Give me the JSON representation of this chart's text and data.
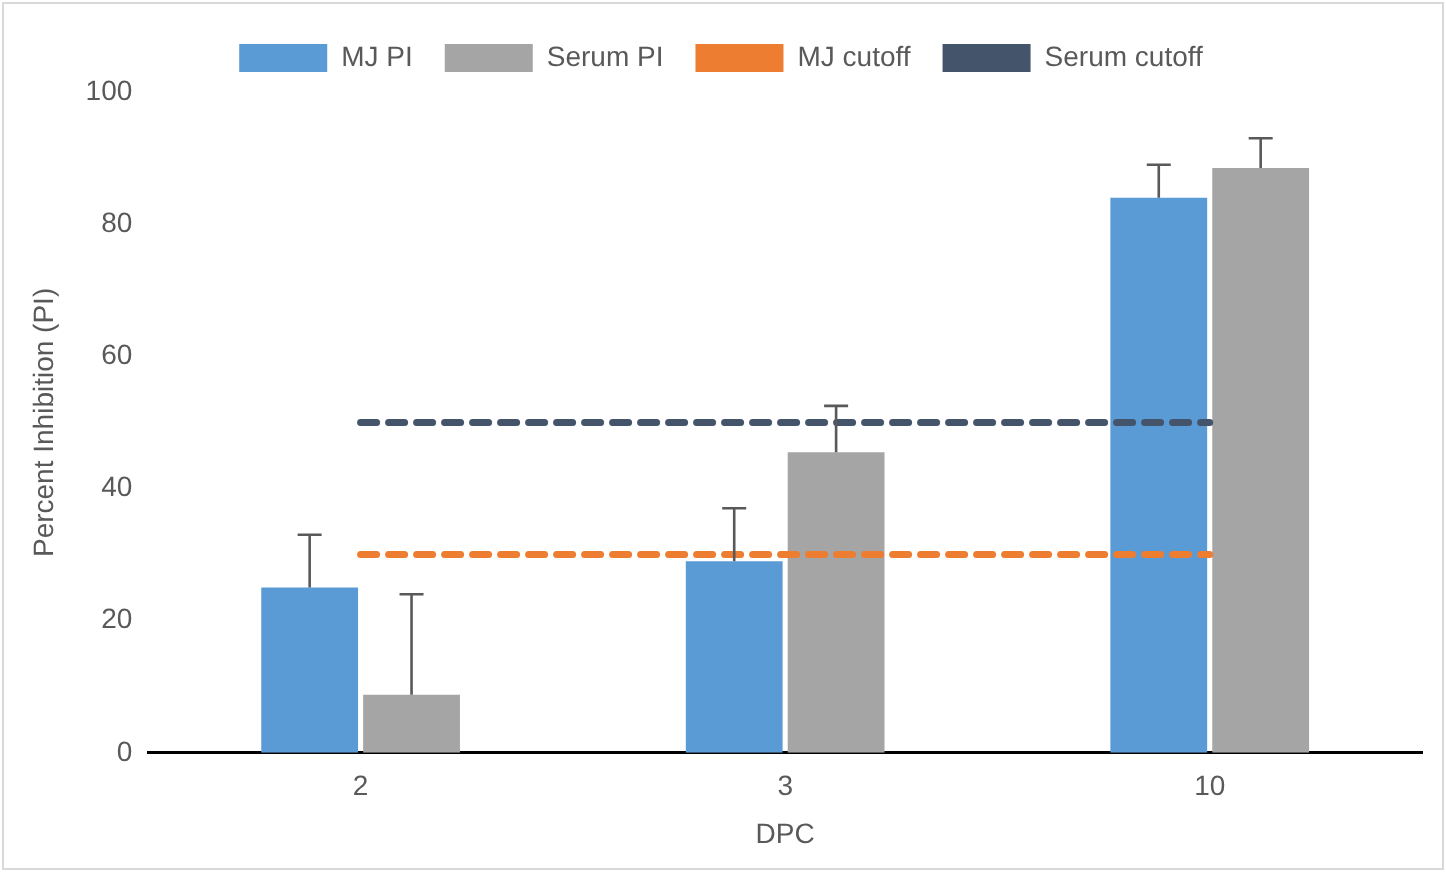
{
  "chart_data": {
    "type": "bar",
    "xlabel": "DPC",
    "ylabel": "Percent Inhibition (PI)",
    "categories": [
      "2",
      "3",
      "10"
    ],
    "series": [
      {
        "name": "MJ PI",
        "color": "#5b9bd5",
        "values": [
          25,
          29,
          84
        ],
        "errors": [
          [
            25,
            33
          ],
          [
            29,
            37
          ],
          [
            84,
            89
          ]
        ]
      },
      {
        "name": "Serum PI",
        "color": "#a5a5a5",
        "values": [
          8.8,
          45.5,
          88.5
        ],
        "errors": [
          [
            8.8,
            24
          ],
          [
            45.5,
            52.5
          ],
          [
            88.5,
            93
          ]
        ]
      },
      {
        "name": "MJ cutoff",
        "type": "line",
        "color": "#ed7d31",
        "line_style": "dashed",
        "marker": "none",
        "values": [
          30,
          30,
          30
        ]
      },
      {
        "name": "Serum cutoff",
        "type": "line",
        "color": "#44546a",
        "line_style": "dashed",
        "marker": "none",
        "values": [
          50,
          50,
          50
        ]
      }
    ],
    "ylim": [
      0,
      100
    ],
    "yticks": [
      0,
      20,
      40,
      60,
      80,
      100
    ],
    "grid": false,
    "legend": "top"
  }
}
